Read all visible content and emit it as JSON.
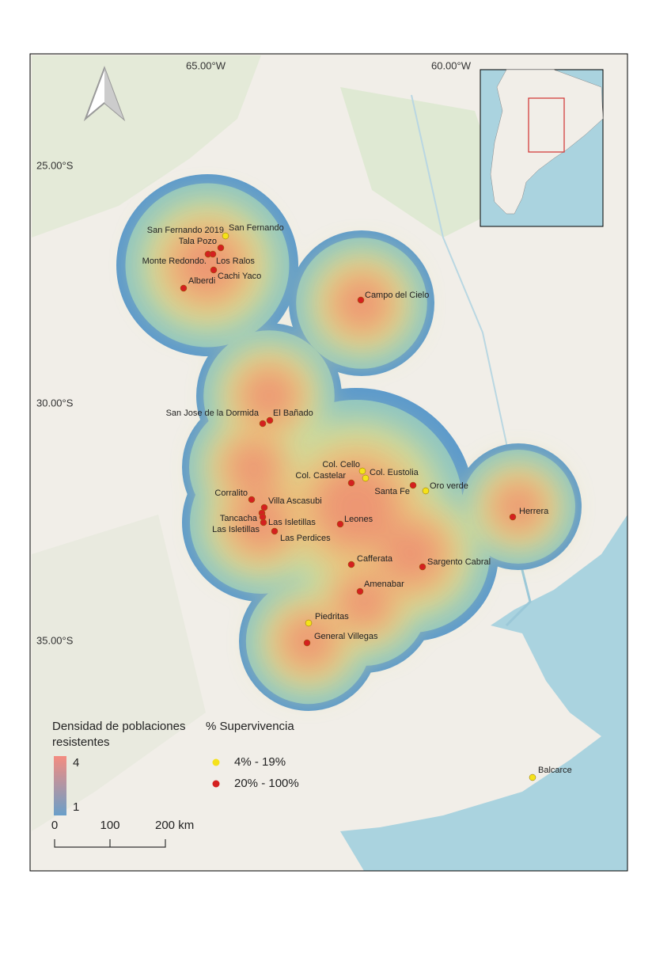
{
  "map": {
    "graticule": {
      "lon": [
        "65.00°W",
        "60.00°W"
      ],
      "lat": [
        "25.00°S",
        "30.00°S",
        "35.00°S"
      ]
    },
    "places": [
      {
        "name": "San Fernando 2019",
        "color": "#d42020"
      },
      {
        "name": "San Fernando",
        "color": "#f5e21a"
      },
      {
        "name": "Tala Pozo",
        "color": "#d42020"
      },
      {
        "name": "Monte Redondo.",
        "color": "#d42020"
      },
      {
        "name": "Los Ralos",
        "color": "#d42020"
      },
      {
        "name": "Cachi Yaco",
        "color": "#d42020"
      },
      {
        "name": "Alberdi",
        "color": "#d42020"
      },
      {
        "name": "Campo del Cielo",
        "color": "#d42020"
      },
      {
        "name": "San Jose de la Dormida",
        "color": "#d42020"
      },
      {
        "name": "El Bañado",
        "color": "#d42020"
      },
      {
        "name": "Col. Cello",
        "color": "#f5e21a"
      },
      {
        "name": "Col. Eustolia",
        "color": "#f5e21a"
      },
      {
        "name": "Col. Castelar",
        "color": "#d42020"
      },
      {
        "name": "Santa Fe",
        "color": "#d42020"
      },
      {
        "name": "Oro verde",
        "color": "#f5e21a"
      },
      {
        "name": "Corralito",
        "color": "#d42020"
      },
      {
        "name": "Villa Ascasubi",
        "color": "#d42020"
      },
      {
        "name": "Tancacha",
        "color": "#d42020"
      },
      {
        "name": "Las Isletillas",
        "color": "#d42020"
      },
      {
        "name": "Las Isletillas",
        "color": "#d42020"
      },
      {
        "name": "Las Perdices",
        "color": "#d42020"
      },
      {
        "name": "Leones",
        "color": "#d42020"
      },
      {
        "name": "Herrera",
        "color": "#d42020"
      },
      {
        "name": "Cafferata",
        "color": "#d42020"
      },
      {
        "name": "Sargento Cabral",
        "color": "#d42020"
      },
      {
        "name": "Amenabar",
        "color": "#d42020"
      },
      {
        "name": "Piedritas",
        "color": "#f5e21a"
      },
      {
        "name": "General Villegas",
        "color": "#d42020"
      },
      {
        "name": "Balcarce",
        "color": "#f5e21a"
      }
    ],
    "legend": {
      "density_title": [
        "Densidad de poblaciones",
        "resistentes"
      ],
      "density_max": "4",
      "density_min": "1",
      "survival_title": "% Supervivencia",
      "survival_items": [
        {
          "label": "4%  - 19%",
          "color": "#f5e21a"
        },
        {
          "label": "20% - 100%",
          "color": "#d42020"
        }
      ]
    },
    "scale": [
      "0",
      "100",
      "200 km"
    ]
  }
}
